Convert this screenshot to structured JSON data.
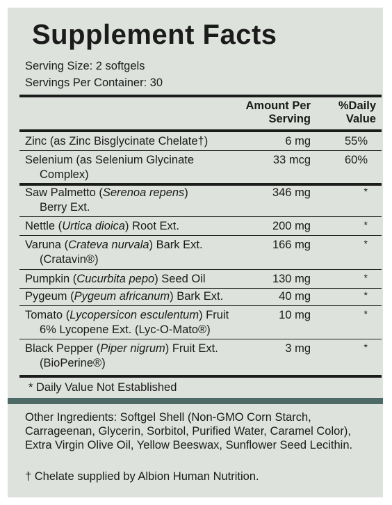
{
  "title": "Supplement Facts",
  "serving_size": "Serving Size: 2 softgels",
  "servings_per_container": "Servings Per Container: 30",
  "header": {
    "amount_line1": "Amount Per",
    "amount_line2": "Serving",
    "dv_line1": "%Daily",
    "dv_line2": "Value"
  },
  "rows": [
    {
      "pre": "Zinc (as Zinc Bisglycinate Chelate†)",
      "latin": "",
      "post": "",
      "line2": "",
      "amount": "6 mg",
      "dv": "55%"
    },
    {
      "pre": "Selenium (as Selenium Glycinate",
      "latin": "",
      "post": "",
      "line2": "Complex)",
      "amount": "33 mcg",
      "dv": "60%"
    },
    {
      "pre": "Saw Palmetto (",
      "latin": "Serenoa repens",
      "post": ")",
      "line2": "Berry Ext.",
      "amount": "346 mg",
      "dv": "*"
    },
    {
      "pre": "Nettle (",
      "latin": "Urtica dioica",
      "post": ") Root Ext.",
      "line2": "",
      "amount": "200 mg",
      "dv": "*"
    },
    {
      "pre": "Varuna (",
      "latin": "Crateva nurvala",
      "post": ") Bark Ext.",
      "line2": "(Cratavin®)",
      "amount": "166 mg",
      "dv": "*"
    },
    {
      "pre": "Pumpkin (",
      "latin": "Cucurbita pepo",
      "post": ") Seed Oil",
      "line2": "",
      "amount": "130 mg",
      "dv": "*"
    },
    {
      "pre": "Pygeum (",
      "latin": "Pygeum africanum",
      "post": ") Bark Ext.",
      "line2": "",
      "amount": "40 mg",
      "dv": "*"
    },
    {
      "pre": "Tomato (",
      "latin": "Lycopersicon esculentum",
      "post": ") Fruit",
      "line2": "6% Lycopene Ext. (Lyc-O-Mato®)",
      "amount": "10 mg",
      "dv": "*"
    },
    {
      "pre": "Black Pepper (",
      "latin": "Piper nigrum",
      "post": ") Fruit Ext.",
      "line2": "(BioPerine®)",
      "amount": "3 mg",
      "dv": "*"
    }
  ],
  "footnote": "* Daily Value Not Established",
  "other_ingredients": "Other Ingredients: Softgel Shell (Non-GMO Corn Starch, Carrageenan, Glycerin, Sorbitol, Purified Water, Caramel Color), Extra Virgin Olive Oil, Yellow Beeswax, Sunflower Seed Lecithin.",
  "chelate_note": "† Chelate supplied by Albion Human Nutrition.",
  "colors": {
    "panel": "#dde2dc",
    "band": "#4e6a67",
    "text": "#1a1a1a"
  }
}
